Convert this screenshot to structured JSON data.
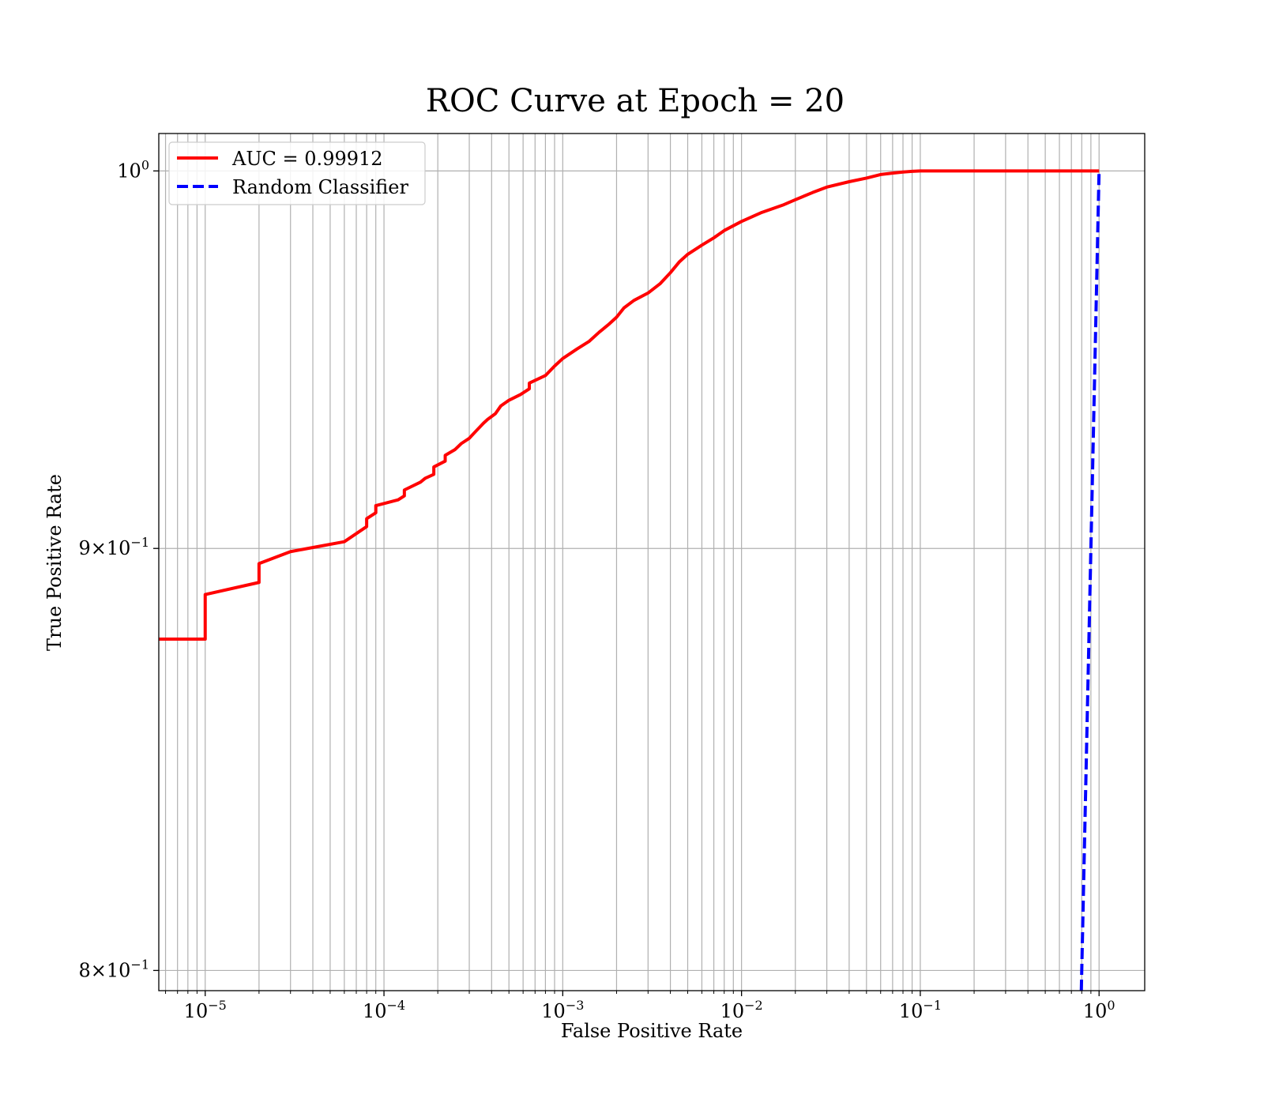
{
  "chart_data": {
    "type": "line",
    "title": "ROC Curve at Epoch = 20",
    "xlabel": "False Positive Rate",
    "ylabel": "True Positive Rate",
    "xscale": "log",
    "yscale": "log",
    "xlim": [
      5.5e-06,
      1.8
    ],
    "ylim": [
      0.7955,
      1.0105
    ],
    "grid": true,
    "legend": "top-left",
    "x_ticks": [
      {
        "base": "10",
        "exp": "−5",
        "value": 1e-05
      },
      {
        "base": "10",
        "exp": "−4",
        "value": 0.0001
      },
      {
        "base": "10",
        "exp": "−3",
        "value": 0.001
      },
      {
        "base": "10",
        "exp": "−2",
        "value": 0.01
      },
      {
        "base": "10",
        "exp": "−1",
        "value": 0.1
      },
      {
        "base": "10",
        "exp": "0",
        "value": 1
      }
    ],
    "y_ticks": [
      {
        "mant": "8",
        "base": "10",
        "exp": "−1",
        "value": 0.8
      },
      {
        "mant": "9",
        "base": "10",
        "exp": "−1",
        "value": 0.9
      },
      {
        "mant": "",
        "base": "10",
        "exp": "0",
        "value": 1.0
      }
    ],
    "series": [
      {
        "name": "AUC = 0.99912",
        "color": "#ff0000",
        "style": "solid",
        "x": [
          5.5e-06,
          1e-05,
          1e-05,
          2e-05,
          2e-05,
          3e-05,
          6e-05,
          8e-05,
          8e-05,
          9e-05,
          9e-05,
          0.00012,
          0.00013,
          0.00013,
          0.00016,
          0.00017,
          0.00019,
          0.00019,
          0.00022,
          0.00022,
          0.00025,
          0.00027,
          0.0003,
          0.00032,
          0.00036,
          0.00038,
          0.00042,
          0.00045,
          0.0005,
          0.00058,
          0.00065,
          0.00065,
          0.0008,
          0.0009,
          0.001,
          0.0012,
          0.0014,
          0.0016,
          0.0018,
          0.002,
          0.0022,
          0.0025,
          0.003,
          0.0035,
          0.004,
          0.0045,
          0.005,
          0.006,
          0.007,
          0.008,
          0.01,
          0.013,
          0.017,
          0.02,
          0.025,
          0.03,
          0.04,
          0.05,
          0.06,
          0.07,
          0.08,
          0.09,
          0.1,
          1.0
        ],
        "y": [
          0.8775,
          0.8775,
          0.8885,
          0.8915,
          0.8962,
          0.8992,
          0.9017,
          0.9055,
          0.9075,
          0.909,
          0.9108,
          0.9123,
          0.9133,
          0.9148,
          0.9168,
          0.9178,
          0.9188,
          0.9207,
          0.9222,
          0.9237,
          0.9252,
          0.9267,
          0.9281,
          0.9295,
          0.932,
          0.933,
          0.9345,
          0.9365,
          0.938,
          0.9395,
          0.941,
          0.9425,
          0.9445,
          0.947,
          0.949,
          0.9515,
          0.9535,
          0.956,
          0.958,
          0.96,
          0.9625,
          0.9645,
          0.9665,
          0.969,
          0.972,
          0.975,
          0.977,
          0.9795,
          0.9815,
          0.9835,
          0.986,
          0.9885,
          0.9905,
          0.992,
          0.994,
          0.9955,
          0.997,
          0.998,
          0.999,
          0.9994,
          0.9997,
          0.9999,
          1.0,
          1.0
        ]
      },
      {
        "name": "Random Classifier",
        "color": "#0000ff",
        "style": "dashed",
        "x": [
          0.7955,
          1.0
        ],
        "y": [
          0.7955,
          1.0
        ]
      }
    ]
  }
}
